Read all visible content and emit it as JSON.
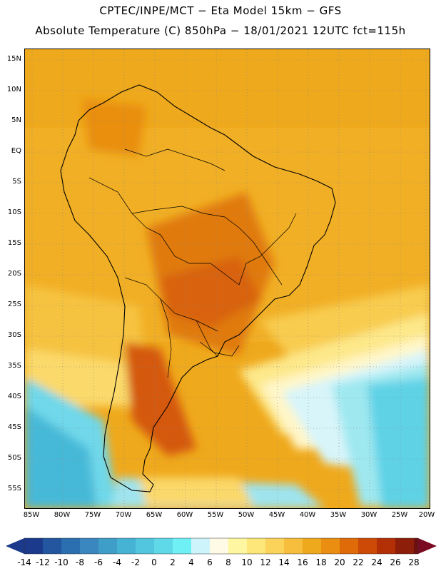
{
  "header": {
    "line1": "CPTEC/INPE/MCT −  Eta Model 15km − GFS",
    "line2": "Absolute Temperature (C) 850hPa − 18/01/2021 12UTC fct=115h"
  },
  "map": {
    "lat_labels": [
      "15N",
      "10N",
      "5N",
      "EQ",
      "5S",
      "10S",
      "15S",
      "20S",
      "25S",
      "30S",
      "35S",
      "40S",
      "45S",
      "50S",
      "55S"
    ],
    "lon_labels": [
      "85W",
      "80W",
      "75W",
      "70W",
      "65W",
      "60W",
      "55W",
      "50W",
      "45W",
      "40W",
      "35W",
      "30W",
      "25W",
      "20W"
    ]
  },
  "colorbar": {
    "labels": [
      "-14",
      "-12",
      "-10",
      "-8",
      "-6",
      "-4",
      "-2",
      "0",
      "2",
      "4",
      "6",
      "8",
      "10",
      "12",
      "14",
      "16",
      "18",
      "20",
      "22",
      "24",
      "26",
      "28"
    ],
    "colors": [
      "#1b3a8c",
      "#2456a0",
      "#2c6fb0",
      "#3a87c0",
      "#3f9ec8",
      "#46b3d4",
      "#52c6de",
      "#5fd8e8",
      "#6ff0f4",
      "#cdf4fb",
      "#fffae6",
      "#fef6a0",
      "#fde77a",
      "#fbd35a",
      "#f6be3c",
      "#efa91c",
      "#e98e10",
      "#df6a08",
      "#cc4a06",
      "#b33006",
      "#8d1e0a",
      "#6e1010",
      "#7a0a22"
    ]
  }
}
